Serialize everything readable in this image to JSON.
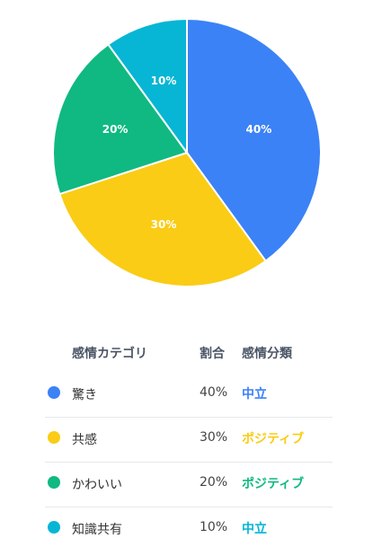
{
  "chart_data": {
    "type": "pie",
    "slices": [
      {
        "label": "驚き",
        "value": 40,
        "display": "40%",
        "color": "#3b82f6"
      },
      {
        "label": "共感",
        "value": 30,
        "display": "30%",
        "color": "#facc15"
      },
      {
        "label": "かわいい",
        "value": 20,
        "display": "20%",
        "color": "#10b981"
      },
      {
        "label": "知識共有",
        "value": 10,
        "display": "10%",
        "color": "#06b6d4"
      }
    ]
  },
  "table": {
    "headers": {
      "category": "感情カテゴリ",
      "ratio": "割合",
      "classification": "感情分類"
    },
    "rows": [
      {
        "category": "驚き",
        "ratio": "40%",
        "classification": "中立",
        "dot_color": "#3b82f6",
        "class_color": "#3b82f6"
      },
      {
        "category": "共感",
        "ratio": "30%",
        "classification": "ポジティブ",
        "dot_color": "#facc15",
        "class_color": "#facc15"
      },
      {
        "category": "かわいい",
        "ratio": "20%",
        "classification": "ポジティブ",
        "dot_color": "#10b981",
        "class_color": "#10b981"
      },
      {
        "category": "知識共有",
        "ratio": "10%",
        "classification": "中立",
        "dot_color": "#06b6d4",
        "class_color": "#06b6d4"
      }
    ]
  }
}
